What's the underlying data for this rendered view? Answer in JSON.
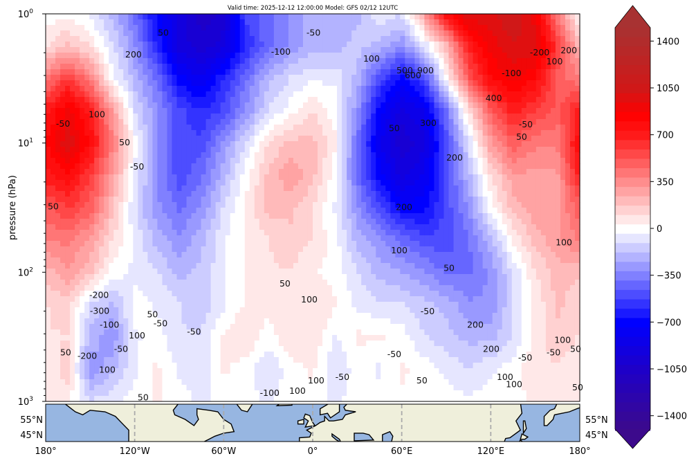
{
  "chart_data": {
    "type": "heatmap",
    "title": "Valid time: 2025-12-12 12:00:00 Model: GFS 02/12 12UTC",
    "ylabel": "pressure (hPa)",
    "xlabel": "",
    "yscale": "log",
    "ylim": [
      1000,
      1
    ],
    "xlim": [
      -180,
      180
    ],
    "lons": [
      -180,
      -165,
      -150,
      -135,
      -120,
      -105,
      -90,
      -75,
      -60,
      -45,
      -30,
      -15,
      0,
      15,
      30,
      45,
      60,
      75,
      90,
      105,
      120,
      135,
      150,
      165,
      180
    ],
    "log10_pressure_rows": [
      0,
      0.25,
      0.5,
      0.75,
      1,
      1.25,
      1.5,
      1.75,
      2,
      2.25,
      2.5,
      2.75,
      3
    ],
    "values": [
      [
        0,
        0,
        -50,
        -200,
        -400,
        -700,
        -900,
        -1050,
        -1000,
        -500,
        -400,
        -300,
        -200,
        -200,
        -200,
        -50,
        -100,
        300,
        800,
        1000,
        1000,
        1100,
        900,
        400,
        0
      ],
      [
        100,
        200,
        100,
        -100,
        -300,
        -600,
        -900,
        -1000,
        -900,
        -600,
        -400,
        -300,
        -200,
        -200,
        -150,
        -200,
        -300,
        -100,
        200,
        700,
        900,
        1000,
        1000,
        600,
        200
      ],
      [
        400,
        600,
        400,
        0,
        -200,
        -400,
        -700,
        -800,
        -600,
        -400,
        -200,
        -100,
        -50,
        -50,
        -200,
        -500,
        -700,
        -500,
        0,
        500,
        800,
        900,
        800,
        500,
        400
      ],
      [
        700,
        900,
        700,
        300,
        -100,
        -300,
        -500,
        -600,
        -500,
        -300,
        -100,
        0,
        100,
        0,
        -300,
        -700,
        -900,
        -800,
        -400,
        100,
        500,
        700,
        600,
        500,
        700
      ],
      [
        800,
        1000,
        800,
        400,
        0,
        -300,
        -500,
        -500,
        -300,
        -100,
        100,
        200,
        200,
        50,
        -400,
        -800,
        -1000,
        -900,
        -500,
        -100,
        300,
        500,
        400,
        400,
        800
      ],
      [
        700,
        800,
        600,
        300,
        -50,
        -300,
        -500,
        -400,
        -200,
        0,
        200,
        300,
        200,
        0,
        -400,
        -700,
        -900,
        -800,
        -500,
        -200,
        100,
        300,
        300,
        300,
        700
      ],
      [
        500,
        600,
        500,
        200,
        -100,
        -300,
        -400,
        -300,
        -100,
        50,
        200,
        200,
        100,
        -50,
        -300,
        -500,
        -700,
        -700,
        -500,
        -300,
        0,
        200,
        300,
        300,
        500
      ],
      [
        400,
        400,
        300,
        100,
        -50,
        -200,
        -300,
        -200,
        -50,
        50,
        100,
        150,
        100,
        0,
        -200,
        -300,
        -400,
        -500,
        -500,
        -400,
        -200,
        50,
        200,
        300,
        400
      ],
      [
        200,
        300,
        200,
        0,
        -50,
        -100,
        -200,
        -150,
        -50,
        50,
        100,
        100,
        50,
        0,
        -100,
        -200,
        -250,
        -300,
        -400,
        -400,
        -300,
        -100,
        100,
        200,
        200
      ],
      [
        100,
        150,
        -100,
        -200,
        0,
        -50,
        -100,
        -150,
        -50,
        50,
        50,
        100,
        100,
        50,
        -50,
        -100,
        -100,
        -150,
        -200,
        -300,
        -300,
        -100,
        50,
        200,
        100
      ],
      [
        100,
        100,
        -200,
        -300,
        -50,
        0,
        -100,
        -100,
        50,
        100,
        0,
        100,
        100,
        -50,
        50,
        50,
        0,
        -100,
        -150,
        -200,
        -200,
        -100,
        50,
        150,
        100
      ],
      [
        50,
        150,
        -300,
        -200,
        -50,
        50,
        -50,
        -100,
        50,
        0,
        -100,
        0,
        50,
        -100,
        0,
        -50,
        50,
        0,
        -50,
        -100,
        -50,
        0,
        100,
        100,
        50
      ],
      [
        50,
        50,
        -100,
        -50,
        0,
        50,
        0,
        -50,
        0,
        0,
        -50,
        0,
        20,
        -50,
        0,
        0,
        20,
        0,
        0,
        -20,
        0,
        0,
        50,
        50,
        50
      ]
    ],
    "yticks": [
      {
        "base": "10",
        "exp": "0"
      },
      {
        "base": "10",
        "exp": "1"
      },
      {
        "base": "10",
        "exp": "2"
      },
      {
        "base": "10",
        "exp": "3"
      }
    ],
    "xticks": [
      "180°",
      "120°W",
      "60°W",
      "0°",
      "60°E",
      "120°E",
      "180°"
    ],
    "map_lat_labels": [
      "55°N",
      "45°N"
    ],
    "colorbar": {
      "ticks": [
        "1400",
        "1050",
        "700",
        "350",
        "0",
        "−350",
        "−700",
        "−1050",
        "−1400"
      ],
      "tick_values": [
        1400,
        1050,
        700,
        350,
        0,
        -350,
        -700,
        -1050,
        -1400
      ],
      "range": [
        -1500,
        1500
      ],
      "extend": "both",
      "colors": {
        "min": "#3c0a8c",
        "-1050": "#1e00c8",
        "-700": "#0000ff",
        "0": "#ffffff",
        "700": "#ff1a1a",
        "850": "#ff0000",
        "1050": "#d01818",
        "max": "#a83232"
      }
    },
    "contour_labels": [
      {
        "text": "50",
        "lon": -100.7,
        "p": 1.4
      },
      {
        "text": "-50",
        "lon": 0.5,
        "p": 1.4
      },
      {
        "text": "200",
        "lon": -120.8,
        "p": 2.07
      },
      {
        "text": "-100",
        "lon": -21.5,
        "p": 1.97
      },
      {
        "text": "100",
        "lon": 39.6,
        "p": 2.23
      },
      {
        "text": "500",
        "lon": 62,
        "p": 2.75
      },
      {
        "text": "900",
        "lon": 76,
        "p": 2.75
      },
      {
        "text": "600",
        "lon": 67.6,
        "p": 3.0
      },
      {
        "text": "-200",
        "lon": 153,
        "p": 2.0
      },
      {
        "text": "200",
        "lon": 172.6,
        "p": 1.92
      },
      {
        "text": "100",
        "lon": 163,
        "p": 2.34
      },
      {
        "text": "-100",
        "lon": 134,
        "p": 2.89
      },
      {
        "text": "400",
        "lon": 122,
        "p": 4.5
      },
      {
        "text": "-50",
        "lon": 143.6,
        "p": 7.2
      },
      {
        "text": "50",
        "lon": 140.8,
        "p": 9.0
      },
      {
        "text": "-50",
        "lon": -168.3,
        "p": 7.1
      },
      {
        "text": "100",
        "lon": -145.5,
        "p": 6.0
      },
      {
        "text": "50",
        "lon": -126.8,
        "p": 9.9
      },
      {
        "text": "-50",
        "lon": -118.4,
        "p": 15.3
      },
      {
        "text": "50",
        "lon": 55,
        "p": 7.7
      },
      {
        "text": "300",
        "lon": 77.9,
        "p": 7.0
      },
      {
        "text": "200",
        "lon": 95.6,
        "p": 13.0
      },
      {
        "text": "200",
        "lon": 61.6,
        "p": 31.5
      },
      {
        "text": "100",
        "lon": 58.3,
        "p": 68
      },
      {
        "text": "50",
        "lon": 91.9,
        "p": 93
      },
      {
        "text": "100",
        "lon": 169.3,
        "p": 59
      },
      {
        "text": "50",
        "lon": -174.9,
        "p": 31
      },
      {
        "text": "50",
        "lon": -18.7,
        "p": 123
      },
      {
        "text": "100",
        "lon": -2.3,
        "p": 163
      },
      {
        "text": "-50",
        "lon": 77.4,
        "p": 201
      },
      {
        "text": "200",
        "lon": 109.6,
        "p": 256
      },
      {
        "text": "200",
        "lon": 120.3,
        "p": 395
      },
      {
        "text": "-50",
        "lon": 143.2,
        "p": 460
      },
      {
        "text": "-50",
        "lon": 162.3,
        "p": 420
      },
      {
        "text": "100",
        "lon": 168.4,
        "p": 336
      },
      {
        "text": "50",
        "lon": 177.2,
        "p": 395
      },
      {
        "text": "-50",
        "lon": 55,
        "p": 432
      },
      {
        "text": "-50",
        "lon": 20,
        "p": 650
      },
      {
        "text": "100",
        "lon": 2.3,
        "p": 690
      },
      {
        "text": "50",
        "lon": 73.6,
        "p": 690
      },
      {
        "text": "100",
        "lon": 129.6,
        "p": 650
      },
      {
        "text": "100",
        "lon": 135.7,
        "p": 740
      },
      {
        "text": "50",
        "lon": 178.6,
        "p": 780
      },
      {
        "text": "-200",
        "lon": -144,
        "p": 151
      },
      {
        "text": "-300",
        "lon": -143.6,
        "p": 200
      },
      {
        "text": "-100",
        "lon": -137,
        "p": 256
      },
      {
        "text": "50",
        "lon": -108,
        "p": 213
      },
      {
        "text": "-50",
        "lon": -102.6,
        "p": 250
      },
      {
        "text": "-50",
        "lon": -80,
        "p": 290
      },
      {
        "text": "100",
        "lon": -118.4,
        "p": 310
      },
      {
        "text": "-50",
        "lon": -129.2,
        "p": 395
      },
      {
        "text": "-200",
        "lon": -152,
        "p": 445
      },
      {
        "text": "50",
        "lon": -166.5,
        "p": 420
      },
      {
        "text": "100",
        "lon": -138.5,
        "p": 570
      },
      {
        "text": "50",
        "lon": -114.3,
        "p": 935
      },
      {
        "text": "-100",
        "lon": -29,
        "p": 860
      },
      {
        "text": "100",
        "lon": -10.3,
        "p": 830
      }
    ]
  }
}
